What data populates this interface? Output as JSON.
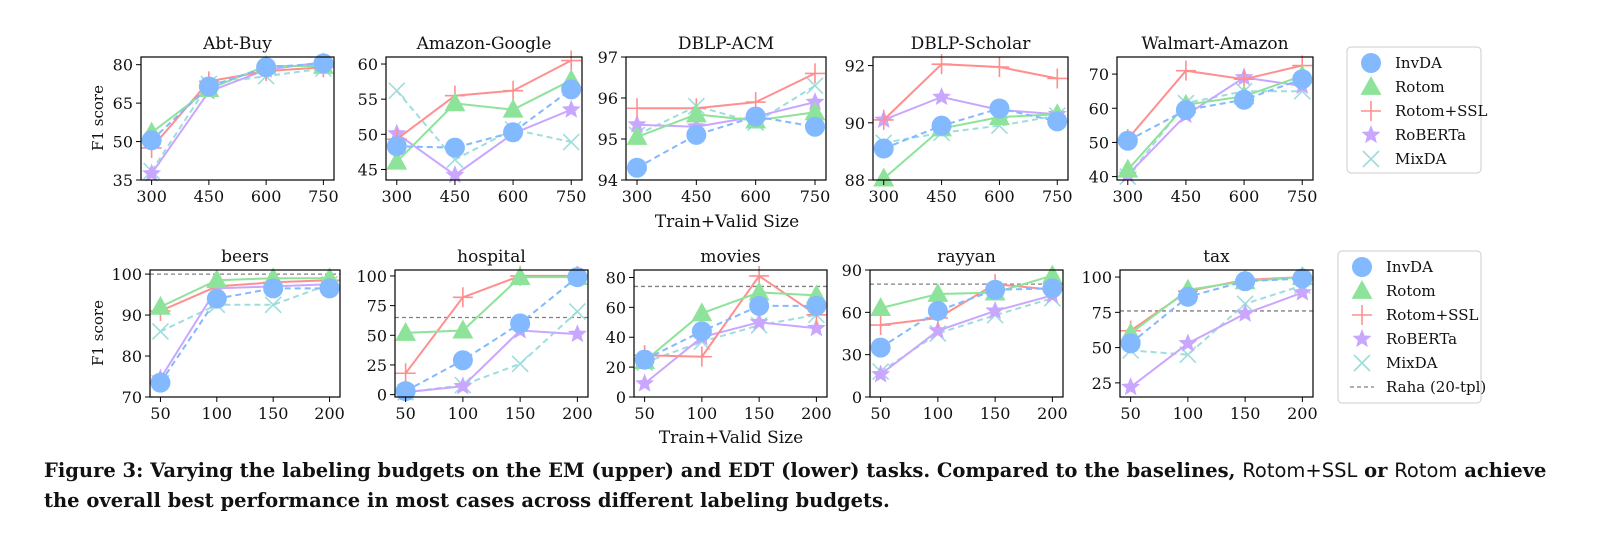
{
  "figure": {
    "series_styles": {
      "InvDA": {
        "color": "#82b9ff",
        "marker": "circle"
      },
      "Rotom": {
        "color": "#8ee39a",
        "marker": "triangle"
      },
      "Rotom+SSL": {
        "color": "#ff8f8f",
        "marker": "plus"
      },
      "RoBERTa": {
        "color": "#c9a7ff",
        "marker": "star"
      },
      "MixDA": {
        "color": "#9fdddd",
        "marker": "x"
      },
      "Raha (20-tpl)": {
        "color": "#808080",
        "marker": "dashed-line"
      }
    },
    "legend_top": [
      "InvDA",
      "Rotom",
      "Rotom+SSL",
      "RoBERTa",
      "MixDA"
    ],
    "legend_bottom": [
      "InvDA",
      "Rotom",
      "Rotom+SSL",
      "RoBERTa",
      "MixDA",
      "Raha (20-tpl)"
    ],
    "ylabel_top": "F1 score",
    "ylabel_bottom": "F1 score",
    "xlabel_top": "Train+Valid Size",
    "xlabel_bottom": "Train+Valid Size"
  },
  "chart_data": [
    {
      "type": "line",
      "title": "Abt-Buy",
      "x": [
        300,
        450,
        600,
        750
      ],
      "ylim": [
        35,
        83
      ],
      "yticks": [
        35,
        50,
        65,
        80
      ],
      "series": [
        {
          "name": "InvDA",
          "values": [
            50.5,
            71.5,
            79,
            80.5
          ]
        },
        {
          "name": "Rotom",
          "values": [
            53.5,
            70.5,
            79.5,
            79.5
          ]
        },
        {
          "name": "Rotom+SSL",
          "values": [
            47.5,
            73.5,
            77.5,
            79
          ]
        },
        {
          "name": "RoBERTa",
          "values": [
            37.5,
            69.5,
            78,
            81
          ]
        },
        {
          "name": "MixDA",
          "values": [
            38.5,
            72.5,
            75.5,
            78.5
          ]
        }
      ]
    },
    {
      "type": "line",
      "title": "Amazon-Google",
      "x": [
        300,
        450,
        600,
        750
      ],
      "ylim": [
        43.5,
        61
      ],
      "yticks": [
        45,
        50,
        55,
        60
      ],
      "series": [
        {
          "name": "InvDA",
          "values": [
            48.3,
            48.1,
            50.3,
            56.4
          ]
        },
        {
          "name": "Rotom",
          "values": [
            46.1,
            54.4,
            53.5,
            57.7
          ]
        },
        {
          "name": "Rotom+SSL",
          "values": [
            49.3,
            55.5,
            56.2,
            60.5
          ]
        },
        {
          "name": "RoBERTa",
          "values": [
            50.1,
            44.2,
            50.1,
            53.5
          ]
        },
        {
          "name": "MixDA",
          "values": [
            56.2,
            46.4,
            50.7,
            48.9
          ]
        }
      ]
    },
    {
      "type": "line",
      "title": "DBLP-ACM",
      "x": [
        300,
        450,
        600,
        750
      ],
      "ylim": [
        94,
        97
      ],
      "yticks": [
        94,
        95,
        96,
        97
      ],
      "series": [
        {
          "name": "InvDA",
          "values": [
            94.3,
            95.1,
            95.55,
            95.3
          ]
        },
        {
          "name": "Rotom",
          "values": [
            95.05,
            95.6,
            95.45,
            95.65
          ]
        },
        {
          "name": "Rotom+SSL",
          "values": [
            95.75,
            95.75,
            95.9,
            96.6
          ]
        },
        {
          "name": "RoBERTa",
          "values": [
            95.35,
            95.3,
            95.55,
            95.9
          ]
        },
        {
          "name": "MixDA",
          "values": [
            95.1,
            95.8,
            95.4,
            96.3
          ]
        }
      ]
    },
    {
      "type": "line",
      "title": "DBLP-Scholar",
      "x": [
        300,
        450,
        600,
        750
      ],
      "ylim": [
        88,
        92.3
      ],
      "yticks": [
        88,
        90,
        92
      ],
      "series": [
        {
          "name": "InvDA",
          "values": [
            89.1,
            89.9,
            90.5,
            90.05
          ]
        },
        {
          "name": "Rotom",
          "values": [
            88.05,
            89.8,
            90.2,
            90.3
          ]
        },
        {
          "name": "Rotom+SSL",
          "values": [
            90.1,
            92.05,
            91.95,
            91.55
          ]
        },
        {
          "name": "RoBERTa",
          "values": [
            90.1,
            90.9,
            90.45,
            90.3
          ]
        },
        {
          "name": "MixDA",
          "values": [
            89.3,
            89.65,
            89.9,
            90.25
          ]
        }
      ]
    },
    {
      "type": "line",
      "title": "Walmart-Amazon",
      "x": [
        300,
        450,
        600,
        750
      ],
      "ylim": [
        39,
        75
      ],
      "yticks": [
        40,
        50,
        60,
        70
      ],
      "series": [
        {
          "name": "InvDA",
          "values": [
            50.5,
            59.5,
            62.5,
            68.5
          ]
        },
        {
          "name": "Rotom",
          "values": [
            42,
            61,
            63.5,
            69.5
          ]
        },
        {
          "name": "Rotom+SSL",
          "values": [
            51,
            71,
            68.5,
            72.5
          ]
        },
        {
          "name": "RoBERTa",
          "values": [
            40.5,
            58,
            69,
            66.5
          ]
        },
        {
          "name": "MixDA",
          "values": [
            40,
            61.5,
            65,
            65
          ]
        }
      ]
    },
    {
      "type": "line",
      "title": "beers",
      "x": [
        50,
        100,
        150,
        200
      ],
      "ylim": [
        70,
        101
      ],
      "yticks": [
        70,
        80,
        90,
        100
      ],
      "baseline": 100,
      "series": [
        {
          "name": "InvDA",
          "values": [
            73.5,
            94,
            96.5,
            96.5
          ]
        },
        {
          "name": "Rotom",
          "values": [
            92,
            98.5,
            99,
            99
          ]
        },
        {
          "name": "Rotom+SSL",
          "values": [
            91,
            97,
            98,
            98.5
          ]
        },
        {
          "name": "RoBERTa",
          "values": [
            74.5,
            96.5,
            97,
            97.5
          ]
        },
        {
          "name": "MixDA",
          "values": [
            86,
            92.5,
            92.5,
            97.5
          ]
        }
      ]
    },
    {
      "type": "line",
      "title": "hospital",
      "x": [
        50,
        100,
        150,
        200
      ],
      "ylim": [
        -2,
        105
      ],
      "yticks": [
        0,
        25,
        50,
        75,
        100
      ],
      "baseline": 65,
      "series": [
        {
          "name": "InvDA",
          "values": [
            3,
            29,
            60,
            99
          ]
        },
        {
          "name": "Rotom",
          "values": [
            52,
            54,
            99,
            99
          ]
        },
        {
          "name": "Rotom+SSL",
          "values": [
            18,
            82,
            100,
            100
          ]
        },
        {
          "name": "RoBERTa",
          "values": [
            2,
            7,
            54,
            51
          ]
        },
        {
          "name": "MixDA",
          "values": [
            2,
            8,
            26,
            70
          ]
        }
      ]
    },
    {
      "type": "line",
      "title": "movies",
      "x": [
        50,
        100,
        150,
        200
      ],
      "ylim": [
        0,
        85
      ],
      "yticks": [
        0,
        20,
        40,
        60,
        80
      ],
      "baseline": 74,
      "series": [
        {
          "name": "InvDA",
          "values": [
            25,
            44,
            61,
            61
          ]
        },
        {
          "name": "Rotom",
          "values": [
            24,
            56,
            70,
            68
          ]
        },
        {
          "name": "Rotom+SSL",
          "values": [
            28,
            27,
            81,
            55
          ]
        },
        {
          "name": "RoBERTa",
          "values": [
            9,
            40,
            50,
            46
          ]
        },
        {
          "name": "MixDA",
          "values": [
            23,
            37,
            48,
            55
          ]
        }
      ]
    },
    {
      "type": "line",
      "title": "rayyan",
      "x": [
        50,
        100,
        150,
        200
      ],
      "ylim": [
        0,
        90
      ],
      "yticks": [
        0,
        30,
        60,
        90
      ],
      "baseline": 80,
      "series": [
        {
          "name": "InvDA",
          "values": [
            35,
            61,
            76,
            77
          ]
        },
        {
          "name": "Rotom",
          "values": [
            63,
            73,
            74,
            86
          ]
        },
        {
          "name": "Rotom+SSL",
          "values": [
            51,
            56,
            80,
            76
          ]
        },
        {
          "name": "RoBERTa",
          "values": [
            16,
            47,
            61,
            72
          ]
        },
        {
          "name": "MixDA",
          "values": [
            18,
            45,
            58,
            70
          ]
        }
      ]
    },
    {
      "type": "line",
      "title": "tax",
      "x": [
        50,
        100,
        150,
        200
      ],
      "ylim": [
        15,
        105
      ],
      "yticks": [
        25,
        50,
        75,
        100
      ],
      "baseline": 76,
      "series": [
        {
          "name": "InvDA",
          "values": [
            53,
            86,
            97,
            99
          ]
        },
        {
          "name": "Rotom",
          "values": [
            60,
            91,
            97,
            100
          ]
        },
        {
          "name": "Rotom+SSL",
          "values": [
            62,
            90,
            98,
            100
          ]
        },
        {
          "name": "RoBERTa",
          "values": [
            22,
            53,
            74,
            89
          ]
        },
        {
          "name": "MixDA",
          "values": [
            48,
            45,
            81,
            94
          ]
        }
      ]
    }
  ],
  "caption": {
    "part1": "Figure 3: Varying the labeling budgets on the EM (upper) and EDT (lower) tasks. Compared to the baselines, ",
    "sys1": "Rotom+SSL",
    "part2": " or ",
    "sys2": "Rotom",
    "part3": " achieve the overall best performance in most cases across different labeling budgets."
  }
}
